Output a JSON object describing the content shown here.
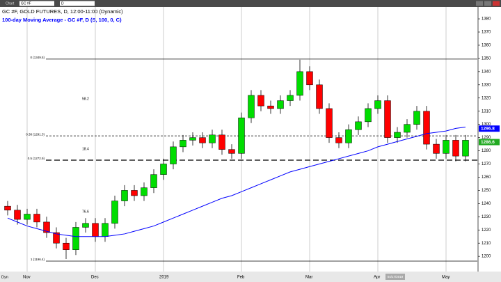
{
  "toolbar": {
    "menu": "Chart",
    "symbol": "GC #F",
    "interval": "D"
  },
  "chart_data": {
    "type": "candlestick",
    "title": "GC #F, GOLD FUTURES, D, 12:00-11:00 (Dynamic)",
    "categories": [
      null,
      null,
      "Nov",
      null,
      null,
      null,
      null,
      null,
      null,
      "Dec",
      null,
      null,
      null,
      null,
      null,
      null,
      "2019",
      null,
      null,
      null,
      null,
      null,
      null,
      null,
      "Feb",
      null,
      null,
      null,
      null,
      null,
      null,
      "Mar",
      null,
      null,
      null,
      null,
      null,
      null,
      "Apr",
      null,
      null,
      null,
      null,
      null,
      null,
      "May",
      null,
      null
    ],
    "open": [
      1238,
      1235,
      1228,
      1232,
      1226,
      1218,
      1210,
      1205,
      1222,
      1225,
      1215,
      1225,
      1242,
      1250,
      1246,
      1252,
      1262,
      1270,
      1283,
      1288,
      1290,
      1286,
      1292,
      1281,
      1278,
      1305,
      1322,
      1314,
      1312,
      1318,
      1322,
      1340,
      1330,
      1312,
      1290,
      1286,
      1296,
      1302,
      1312,
      1318,
      1290,
      1294,
      1300,
      1310,
      1285,
      1278,
      1288,
      1276
    ],
    "high": [
      1242,
      1239,
      1236,
      1236,
      1230,
      1222,
      1214,
      1226,
      1229,
      1229,
      1229,
      1246,
      1254,
      1254,
      1256,
      1266,
      1274,
      1287,
      1292,
      1294,
      1294,
      1296,
      1296,
      1285,
      1309,
      1326,
      1326,
      1318,
      1322,
      1326,
      1349,
      1344,
      1334,
      1316,
      1294,
      1300,
      1306,
      1316,
      1322,
      1322,
      1298,
      1304,
      1314,
      1314,
      1289,
      1292,
      1292,
      1292
    ],
    "low": [
      1231,
      1224,
      1224,
      1222,
      1214,
      1206,
      1198,
      1201,
      1218,
      1211,
      1211,
      1221,
      1238,
      1242,
      1242,
      1248,
      1258,
      1266,
      1279,
      1284,
      1282,
      1282,
      1277,
      1274,
      1274,
      1301,
      1310,
      1308,
      1308,
      1314,
      1318,
      1326,
      1308,
      1286,
      1282,
      1282,
      1292,
      1298,
      1308,
      1286,
      1286,
      1290,
      1296,
      1281,
      1274,
      1274,
      1272,
      1272
    ],
    "close": [
      1235,
      1228,
      1232,
      1226,
      1218,
      1210,
      1205,
      1222,
      1225,
      1215,
      1225,
      1242,
      1250,
      1246,
      1252,
      1262,
      1270,
      1283,
      1288,
      1290,
      1286,
      1292,
      1281,
      1278,
      1305,
      1322,
      1314,
      1312,
      1318,
      1322,
      1340,
      1330,
      1312,
      1290,
      1286,
      1296,
      1302,
      1312,
      1318,
      1290,
      1294,
      1300,
      1310,
      1285,
      1278,
      1288,
      1276,
      1288
    ],
    "up_color": "#00dd00",
    "down_color": "#ff0000",
    "series": [
      {
        "name": "100-day Moving Average - GC #F, D (S, 100, 0, C)",
        "color": "#0000ff",
        "values": [
          1229,
          1226,
          1223,
          1221,
          1219,
          1217,
          1216,
          1215,
          1215,
          1215,
          1215,
          1216,
          1217,
          1219,
          1221,
          1223,
          1226,
          1229,
          1232,
          1235,
          1238,
          1241,
          1244,
          1246,
          1249,
          1252,
          1255,
          1258,
          1261,
          1264,
          1266,
          1268,
          1270,
          1272,
          1274,
          1276,
          1278,
          1280,
          1283,
          1285,
          1287,
          1289,
          1291,
          1293,
          1294,
          1295,
          1297,
          1298
        ]
      }
    ],
    "ylim": [
      1189,
      1389
    ],
    "yticks": [
      1200,
      1210,
      1220,
      1230,
      1240,
      1250,
      1260,
      1270,
      1280,
      1290,
      1300,
      1310,
      1320,
      1330,
      1340,
      1350,
      1360,
      1370,
      1380
    ],
    "fib_levels": [
      {
        "label": "0 (1349.5)",
        "value": 1349.5,
        "dash": "none"
      },
      {
        "label": "0.38 (1291.3)",
        "value": 1291.3,
        "dash": "3,2"
      },
      {
        "label": "0.5 (1272.9)",
        "value": 1272.9,
        "dash": "8,4"
      },
      {
        "label": "1 (1196.4)",
        "value": 1196.4,
        "dash": "none"
      }
    ],
    "annotations": [
      "58.2",
      "18.4",
      "76.6"
    ],
    "price_labels": [
      {
        "value": 1296.8,
        "color": "#0000ff"
      },
      {
        "value": 1286.6,
        "color": "#22aa22"
      }
    ],
    "footer": {
      "mode": "Dyn",
      "date_box": "04/17/2019"
    }
  }
}
